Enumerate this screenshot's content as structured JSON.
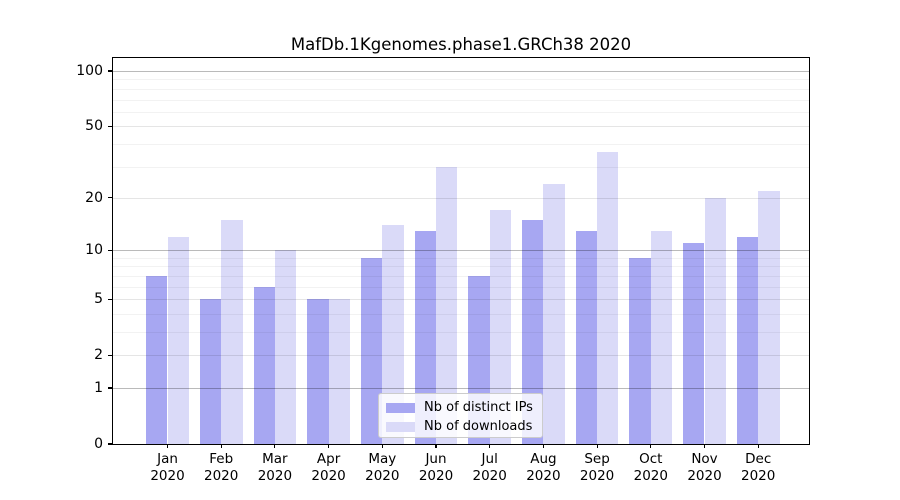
{
  "chart_data": {
    "type": "bar",
    "title": "MafDb.1Kgenomes.phase1.GRCh38 2020",
    "categories": [
      {
        "month": "Jan",
        "year": "2020"
      },
      {
        "month": "Feb",
        "year": "2020"
      },
      {
        "month": "Mar",
        "year": "2020"
      },
      {
        "month": "Apr",
        "year": "2020"
      },
      {
        "month": "May",
        "year": "2020"
      },
      {
        "month": "Jun",
        "year": "2020"
      },
      {
        "month": "Jul",
        "year": "2020"
      },
      {
        "month": "Aug",
        "year": "2020"
      },
      {
        "month": "Sep",
        "year": "2020"
      },
      {
        "month": "Oct",
        "year": "2020"
      },
      {
        "month": "Nov",
        "year": "2020"
      },
      {
        "month": "Dec",
        "year": "2020"
      }
    ],
    "series": [
      {
        "name": "Nb of distinct IPs",
        "color": "#a7a7f2",
        "values": [
          7,
          5,
          6,
          5,
          9,
          13,
          7,
          15,
          13,
          9,
          11,
          12
        ]
      },
      {
        "name": "Nb of downloads",
        "color": "#dadaf8",
        "values": [
          12,
          15,
          10,
          5,
          14,
          30,
          17,
          24,
          36,
          13,
          20,
          22
        ]
      }
    ],
    "xlabel": "",
    "ylabel": "",
    "yscale": "log1p",
    "ylim": [
      0,
      118
    ],
    "y_major_ticks": [
      0,
      1,
      2,
      5,
      10,
      20,
      50,
      100
    ],
    "y_minor_ticks": [
      3,
      4,
      6,
      7,
      8,
      9,
      30,
      40,
      60,
      70,
      80,
      90
    ],
    "grid": true,
    "legend_position": "lower center"
  }
}
